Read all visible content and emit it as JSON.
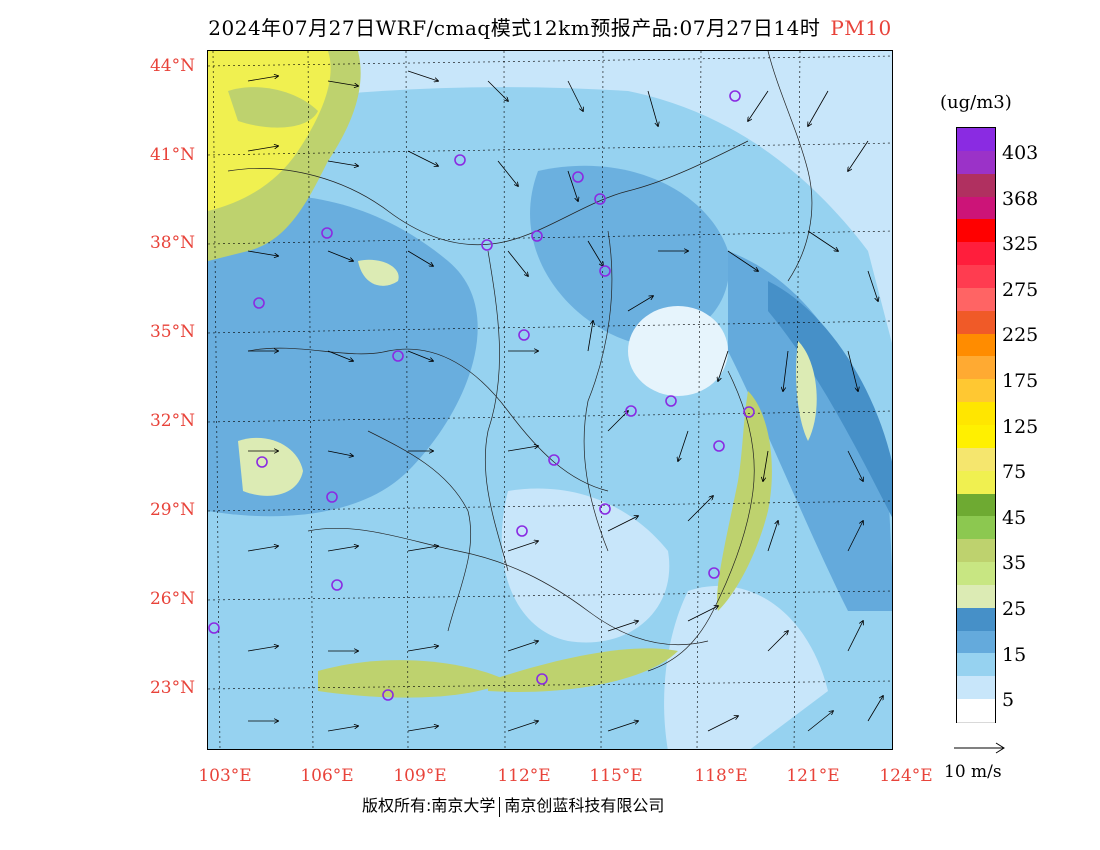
{
  "title": {
    "main": "2024年07月27日WRF/cmaq模式12km预报产品:07月27日14时",
    "pollutant": "PM10"
  },
  "lat_labels": [
    "44°N",
    "41°N",
    "38°N",
    "35°N",
    "32°N",
    "29°N",
    "26°N",
    "23°N"
  ],
  "lon_labels": [
    "103°E",
    "106°E",
    "109°E",
    "112°E",
    "115°E",
    "118°E",
    "121°E",
    "124°E"
  ],
  "colorbar": {
    "unit": "(ug/m3)",
    "labels": [
      "403",
      "368",
      "325",
      "275",
      "225",
      "175",
      "125",
      "75",
      "45",
      "35",
      "25",
      "15",
      "5"
    ],
    "colors": [
      "#8a2be2",
      "#9b32c8",
      "#b03060",
      "#cc1478",
      "#ff0000",
      "#ff1e3c",
      "#ff3c50",
      "#ff6464",
      "#f05a28",
      "#ff8c00",
      "#ffaa32",
      "#ffc832",
      "#ffe600",
      "#fff000",
      "#f5e66e",
      "#f0f050",
      "#6eaa32",
      "#8cc850",
      "#bed26e",
      "#c8e682",
      "#dcebb4",
      "#4690c8",
      "#64aadc",
      "#96d2f0",
      "#c8e6fa",
      "#ffffff"
    ]
  },
  "wind_reference": "10 m/s",
  "footer": {
    "left": "版权所有:南京大学",
    "right": "南京创蓝科技有限公司"
  },
  "map_colors": {
    "light_blue": "#c8e6fa",
    "sky": "#96d2f0",
    "mid_blue": "#64aadc",
    "deep_blue": "#4690c8",
    "pale_green": "#dcebb4",
    "green": "#bed26e",
    "yellow": "#f0f050",
    "gold": "#f5e66e",
    "station": "#8a2be2"
  },
  "stations_count_visible": 24
}
